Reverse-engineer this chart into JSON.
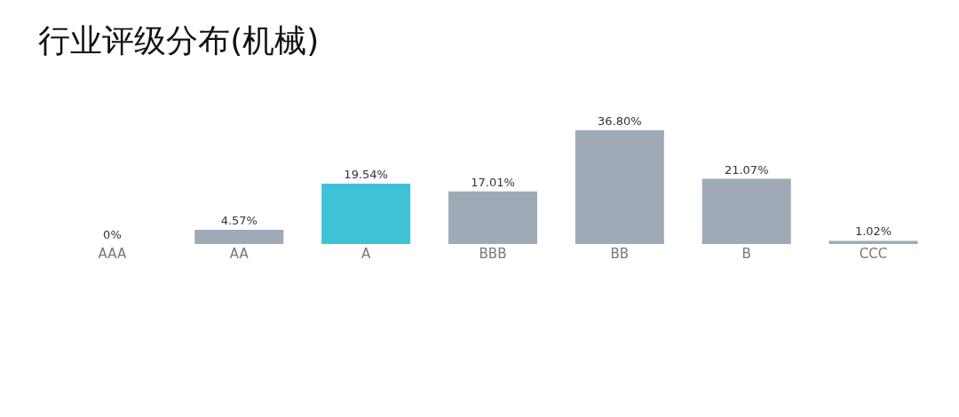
{
  "chart_data": {
    "type": "bar",
    "title": "行业评级分布(机械)",
    "categories": [
      "AAA",
      "AA",
      "A",
      "BBB",
      "BB",
      "B",
      "CCC"
    ],
    "values": [
      0,
      4.57,
      19.54,
      17.01,
      36.8,
      21.07,
      1.02
    ],
    "value_labels": [
      "0%",
      "4.57%",
      "19.54%",
      "17.01%",
      "36.80%",
      "21.07%",
      "1.02%"
    ],
    "colors": [
      "#9eaab5",
      "#9eaab5",
      "#3fc1d6",
      "#9eaab5",
      "#9eaab5",
      "#9eaab5",
      "#9eaab5"
    ]
  }
}
